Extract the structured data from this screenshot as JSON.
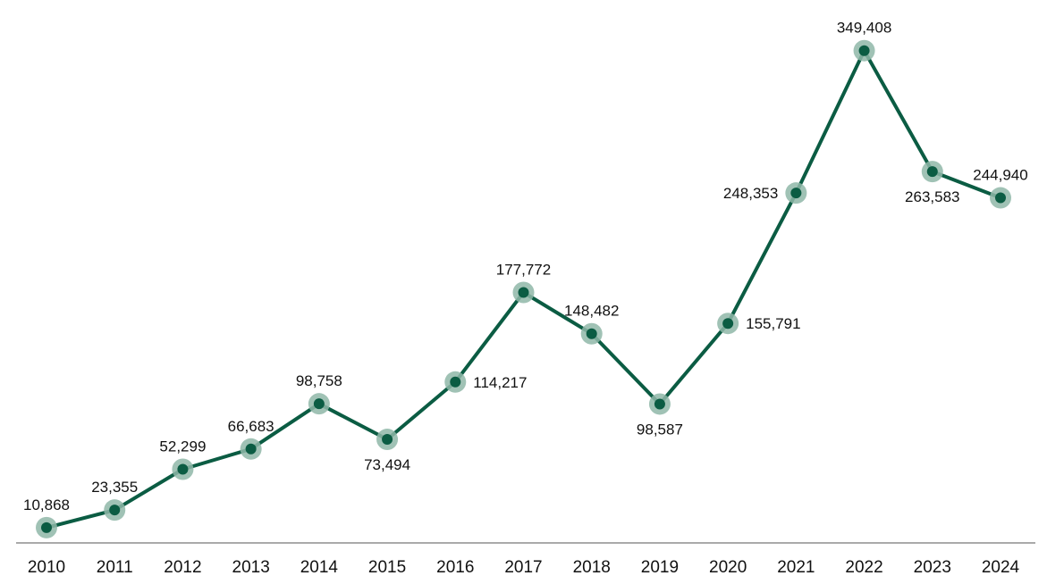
{
  "chart_data": {
    "type": "line",
    "title": "",
    "xlabel": "",
    "ylabel": "",
    "x": [
      "2010",
      "2011",
      "2012",
      "2013",
      "2014",
      "2015",
      "2016",
      "2017",
      "2018",
      "2019",
      "2020",
      "2021",
      "2022",
      "2023",
      "2024"
    ],
    "series": [
      {
        "values": [
          10868,
          23355,
          52299,
          66683,
          98758,
          73494,
          114217,
          177772,
          148482,
          98587,
          155791,
          248353,
          349408,
          263583,
          244940
        ],
        "labels": [
          "10,868",
          "23,355",
          "52,299",
          "66,683",
          "98,758",
          "73,494",
          "114,217",
          "177,772",
          "148,482",
          "98,587",
          "155,791",
          "248,353",
          "349,408",
          "263,583",
          "244,940"
        ]
      }
    ],
    "ylim": [
      0,
      360000
    ],
    "grid": false,
    "legend": "none",
    "colors": {
      "line": "#0b5c43",
      "marker_halo": "#8fb7a8",
      "axis": "#aaaaaa"
    }
  }
}
